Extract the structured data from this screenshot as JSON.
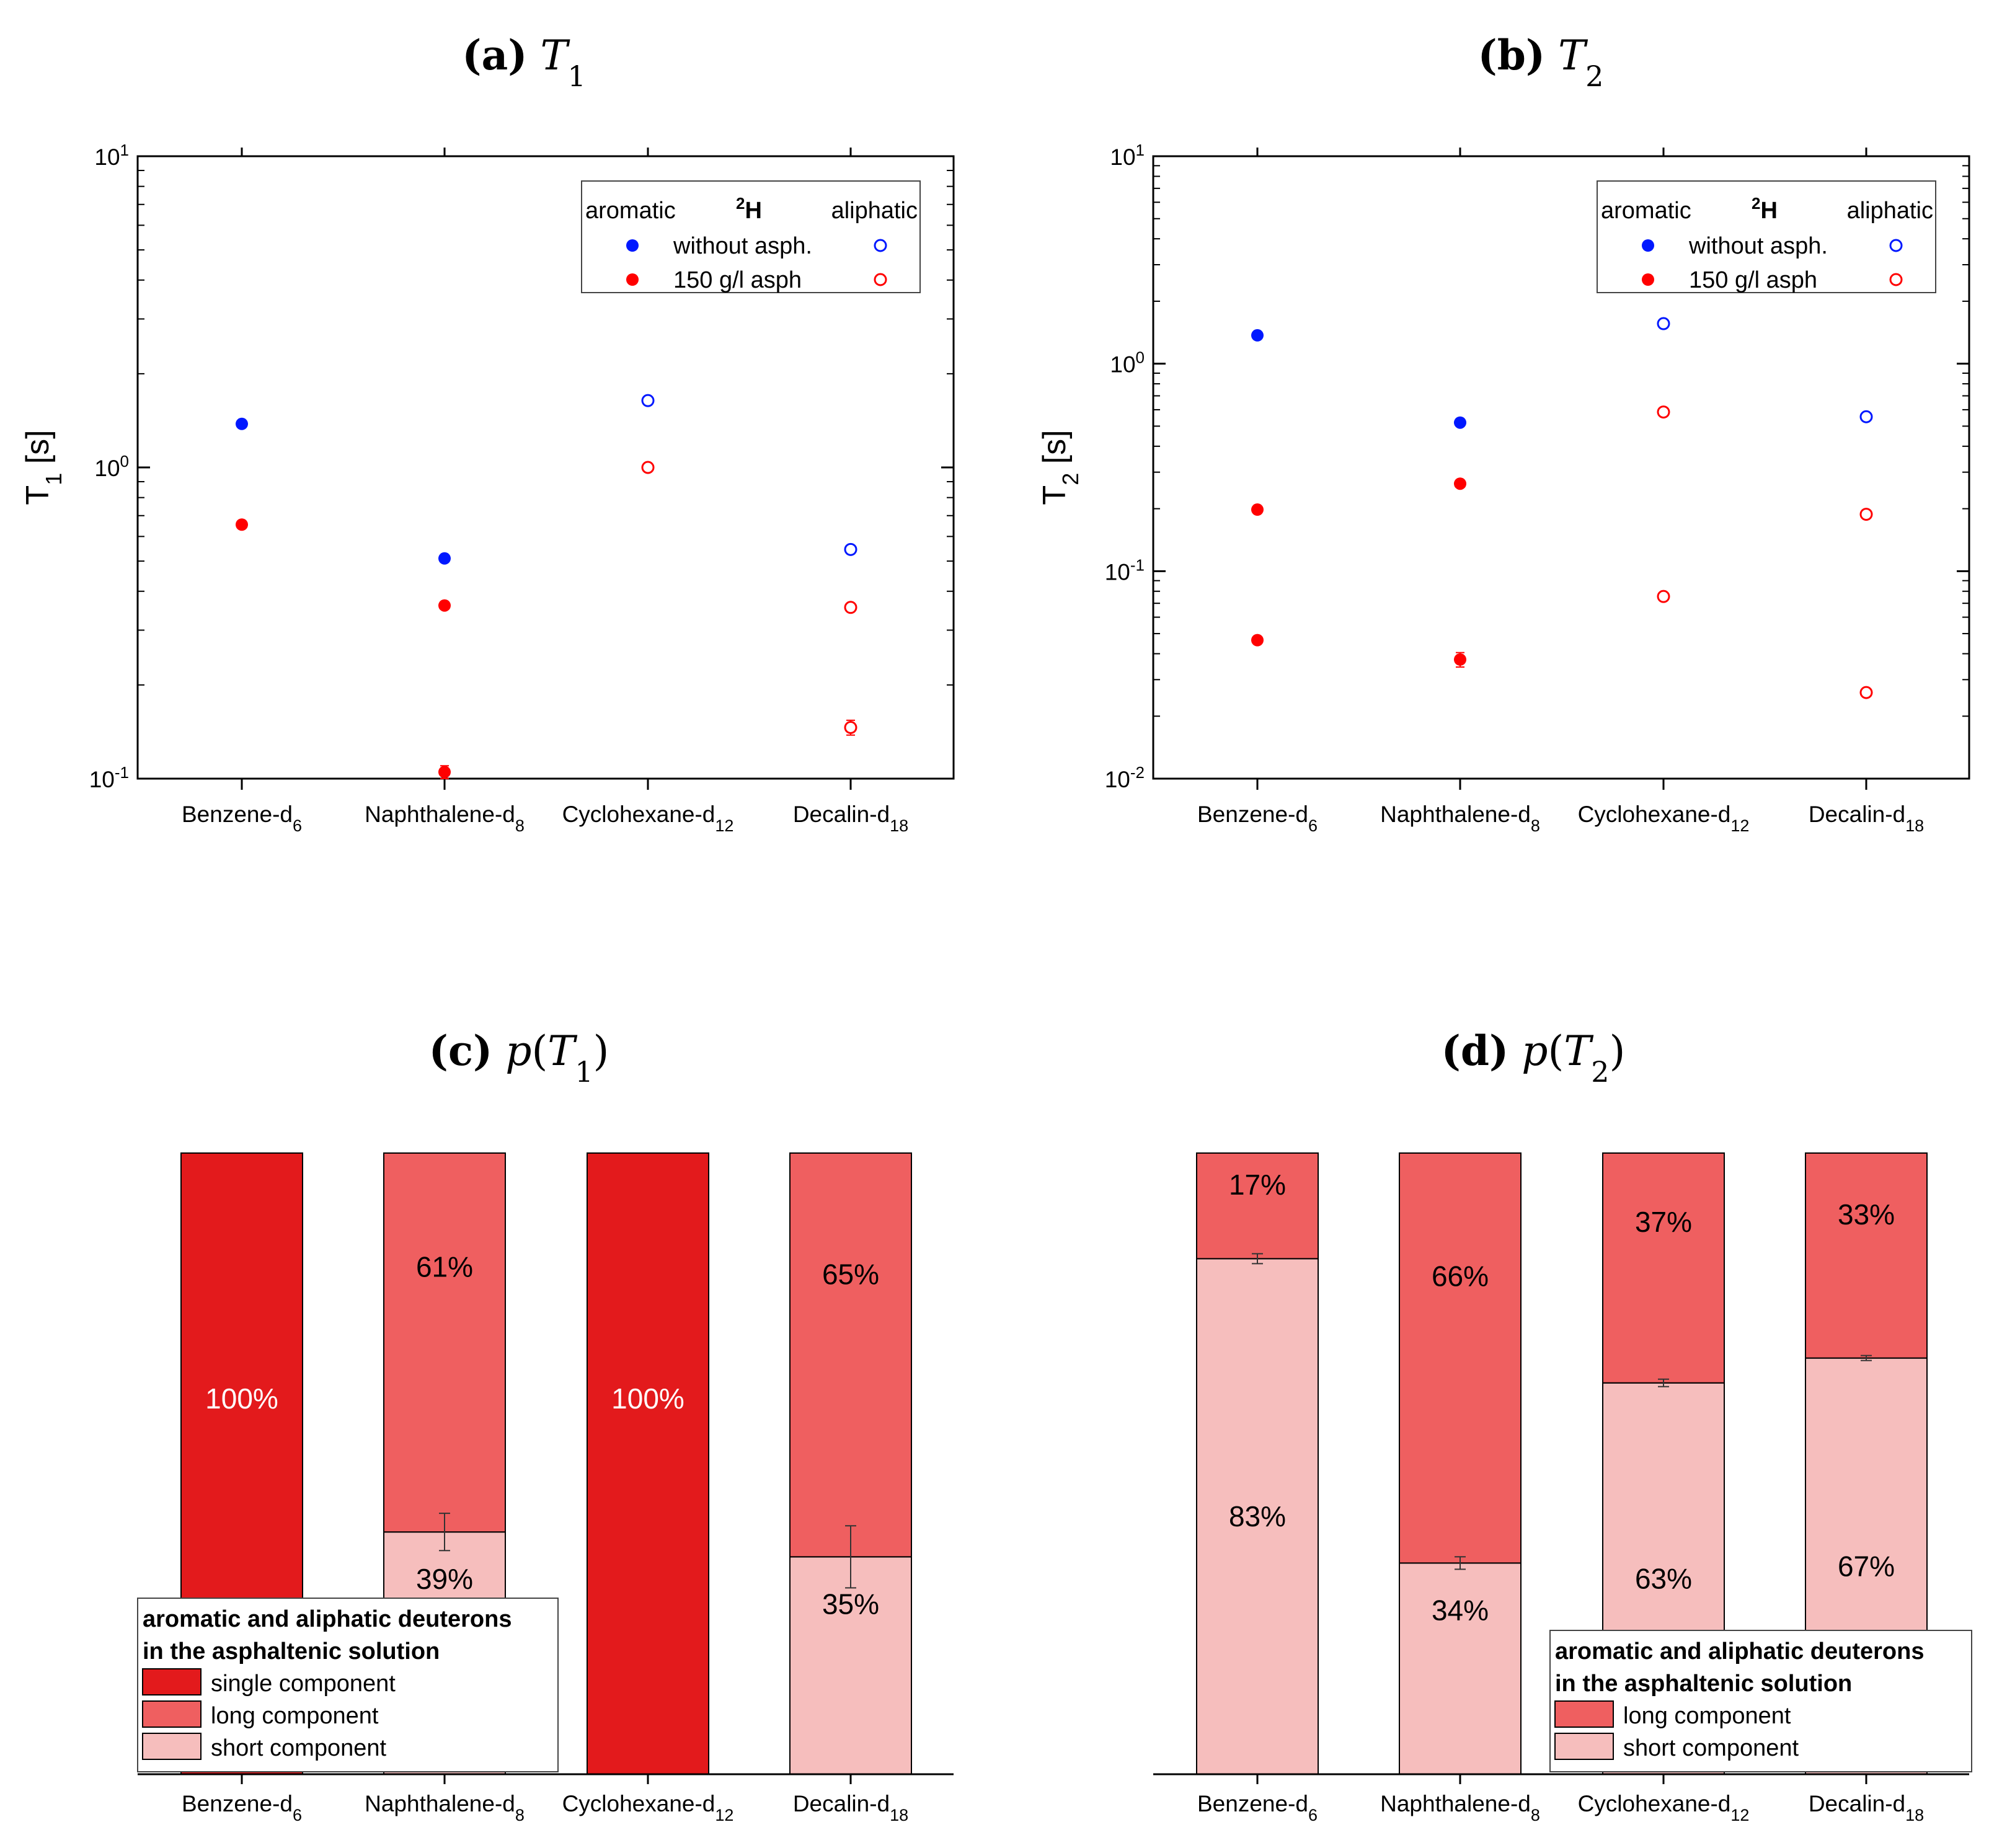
{
  "colors": {
    "aromatic_without": "#0018ff",
    "aromatic_asph": "#ff0000",
    "single_component": "#e31a1c",
    "long_component": "#ef5f60",
    "short_component": "#f6bebd",
    "axis": "#000000"
  },
  "chart_data": [
    {
      "id": "a",
      "type": "scatter",
      "title_letter": "(a)",
      "title_var": "T",
      "title_sub": "1",
      "ylabel": "T",
      "ylabel_sub": "1",
      "ylabel_unit": " [s]",
      "yscale": "log",
      "ylim": [
        0.1,
        10
      ],
      "yticks": [
        {
          "base": "10",
          "exp": "1"
        },
        {
          "base": "10",
          "exp": "0"
        },
        {
          "base": "10",
          "exp": "-1"
        }
      ],
      "categories": [
        {
          "name": "Benzene-d",
          "sub": "6"
        },
        {
          "name": "Naphthalene-d",
          "sub": "8"
        },
        {
          "name": "Cyclohexane-d",
          "sub": "12"
        },
        {
          "name": "Decalin-d",
          "sub": "18"
        }
      ],
      "legend": {
        "left": "aromatic",
        "mid_sup": "2",
        "mid": "H",
        "right": "aliphatic",
        "row1": "without asph.",
        "row2": "150 g/l asph",
        "position": "top-right"
      },
      "series": [
        {
          "name": "without asph.",
          "side": "aromatic",
          "filled": true,
          "color": "#0018ff",
          "points": [
            {
              "cat": 0,
              "y": 1.38
            },
            {
              "cat": 1,
              "y": 0.51
            }
          ]
        },
        {
          "name": "150 g/l asph",
          "side": "aromatic",
          "filled": true,
          "color": "#ff0000",
          "points": [
            {
              "cat": 0,
              "y": 0.655
            },
            {
              "cat": 1,
              "y": 0.36
            },
            {
              "cat": 1,
              "y": 0.105,
              "err": 0.005
            }
          ]
        },
        {
          "name": "without asph.",
          "side": "aliphatic",
          "filled": false,
          "color": "#0018ff",
          "points": [
            {
              "cat": 2,
              "y": 1.64
            },
            {
              "cat": 3,
              "y": 0.545
            }
          ]
        },
        {
          "name": "150 g/l asph",
          "side": "aliphatic",
          "filled": false,
          "color": "#ff0000",
          "points": [
            {
              "cat": 2,
              "y": 1.0
            },
            {
              "cat": 3,
              "y": 0.355
            },
            {
              "cat": 3,
              "y": 0.146,
              "err": 0.008
            }
          ]
        }
      ]
    },
    {
      "id": "b",
      "type": "scatter",
      "title_letter": "(b)",
      "title_var": "T",
      "title_sub": "2",
      "ylabel": "T",
      "ylabel_sub": "2",
      "ylabel_unit": " [s]",
      "yscale": "log",
      "ylim": [
        0.01,
        10
      ],
      "yticks": [
        {
          "base": "10",
          "exp": "1"
        },
        {
          "base": "10",
          "exp": "0"
        },
        {
          "base": "10",
          "exp": "-1"
        },
        {
          "base": "10",
          "exp": "-2"
        }
      ],
      "categories": [
        {
          "name": "Benzene-d",
          "sub": "6"
        },
        {
          "name": "Naphthalene-d",
          "sub": "8"
        },
        {
          "name": "Cyclohexane-d",
          "sub": "12"
        },
        {
          "name": "Decalin-d",
          "sub": "18"
        }
      ],
      "legend": {
        "left": "aromatic",
        "mid_sup": "2",
        "mid": "H",
        "right": "aliphatic",
        "row1": "without asph.",
        "row2": "150 g/l asph",
        "position": "top-right"
      },
      "series": [
        {
          "name": "without asph.",
          "side": "aromatic",
          "filled": true,
          "color": "#0018ff",
          "points": [
            {
              "cat": 0,
              "y": 1.37
            },
            {
              "cat": 1,
              "y": 0.52
            }
          ]
        },
        {
          "name": "150 g/l asph",
          "side": "aromatic",
          "filled": true,
          "color": "#ff0000",
          "points": [
            {
              "cat": 0,
              "y": 0.198
            },
            {
              "cat": 0,
              "y": 0.0465
            },
            {
              "cat": 1,
              "y": 0.264
            },
            {
              "cat": 1,
              "y": 0.0375,
              "err": 0.003
            }
          ]
        },
        {
          "name": "without asph.",
          "side": "aliphatic",
          "filled": false,
          "color": "#0018ff",
          "points": [
            {
              "cat": 2,
              "y": 1.56
            },
            {
              "cat": 3,
              "y": 0.555
            }
          ]
        },
        {
          "name": "150 g/l asph",
          "side": "aliphatic",
          "filled": false,
          "color": "#ff0000",
          "points": [
            {
              "cat": 2,
              "y": 0.585
            },
            {
              "cat": 2,
              "y": 0.0755
            },
            {
              "cat": 3,
              "y": 0.188
            },
            {
              "cat": 3,
              "y": 0.026
            }
          ]
        }
      ]
    },
    {
      "id": "c",
      "type": "bar",
      "stacked": true,
      "title_letter": "(c)",
      "title_func": "p",
      "title_var": "T",
      "title_sub": "1",
      "ylim": [
        0,
        100
      ],
      "categories": [
        {
          "name": "Benzene-d",
          "sub": "6"
        },
        {
          "name": "Naphthalene-d",
          "sub": "8"
        },
        {
          "name": "Cyclohexane-d",
          "sub": "12"
        },
        {
          "name": "Decalin-d",
          "sub": "18"
        }
      ],
      "bars": [
        {
          "segments": [
            {
              "kind": "single",
              "value": 100,
              "label": "100%"
            }
          ]
        },
        {
          "segments": [
            {
              "kind": "short",
              "value": 39,
              "label": "39%",
              "err": 3
            },
            {
              "kind": "long",
              "value": 61,
              "label": "61%"
            }
          ]
        },
        {
          "segments": [
            {
              "kind": "single",
              "value": 100,
              "label": "100%"
            }
          ]
        },
        {
          "segments": [
            {
              "kind": "short",
              "value": 35,
              "label": "35%",
              "err": 5
            },
            {
              "kind": "long",
              "value": 65,
              "label": "65%"
            }
          ]
        }
      ],
      "legend": {
        "title1": "aromatic and aliphatic deuterons",
        "title2": "in the asphaltenic solution",
        "items": [
          {
            "kind": "single",
            "label": "single component"
          },
          {
            "kind": "long",
            "label": "long component"
          },
          {
            "kind": "short",
            "label": "short component"
          }
        ],
        "position": "bottom-left"
      }
    },
    {
      "id": "d",
      "type": "bar",
      "stacked": true,
      "title_letter": "(d)",
      "title_func": "p",
      "title_var": "T",
      "title_sub": "2",
      "ylim": [
        0,
        100
      ],
      "categories": [
        {
          "name": "Benzene-d",
          "sub": "6"
        },
        {
          "name": "Naphthalene-d",
          "sub": "8"
        },
        {
          "name": "Cyclohexane-d",
          "sub": "12"
        },
        {
          "name": "Decalin-d",
          "sub": "18"
        }
      ],
      "bars": [
        {
          "segments": [
            {
              "kind": "short",
              "value": 83,
              "label": "83%",
              "err": 0.8
            },
            {
              "kind": "long",
              "value": 17,
              "label": "17%"
            }
          ]
        },
        {
          "segments": [
            {
              "kind": "short",
              "value": 34,
              "label": "34%",
              "err": 1
            },
            {
              "kind": "long",
              "value": 66,
              "label": "66%"
            }
          ]
        },
        {
          "segments": [
            {
              "kind": "short",
              "value": 63,
              "label": "63%",
              "err": 0.6
            },
            {
              "kind": "long",
              "value": 37,
              "label": "37%"
            }
          ]
        },
        {
          "segments": [
            {
              "kind": "short",
              "value": 67,
              "label": "67%",
              "err": 0.4
            },
            {
              "kind": "long",
              "value": 33,
              "label": "33%"
            }
          ]
        }
      ],
      "legend": {
        "title1": "aromatic and aliphatic deuterons",
        "title2": "in the asphaltenic solution",
        "items": [
          {
            "kind": "long",
            "label": "long component"
          },
          {
            "kind": "short",
            "label": "short component"
          }
        ],
        "position": "bottom-right"
      }
    }
  ]
}
